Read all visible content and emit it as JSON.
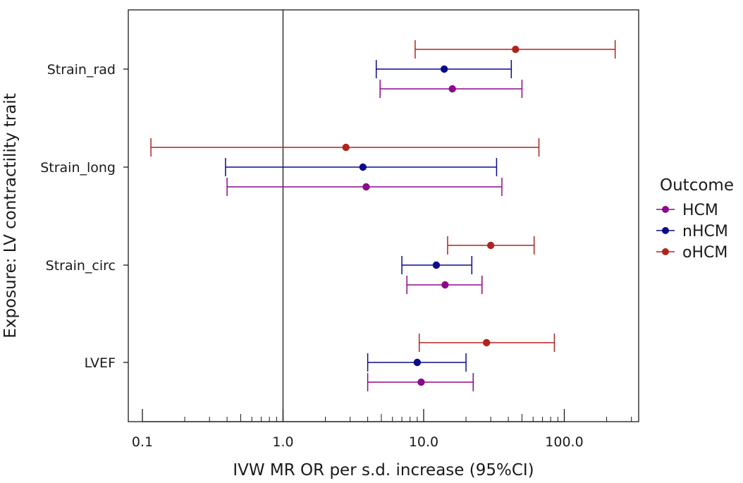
{
  "chart_data": {
    "type": "scatter",
    "subtype": "forest-plot",
    "xlabel": "IVW MR OR per s.d. increase (95%CI)",
    "ylabel": "Exposure: LV contractility trait",
    "x_scale": "log10",
    "xlim": [
      0.084,
      340
    ],
    "x_ticks": [
      0.1,
      1.0,
      10.0,
      100.0
    ],
    "x_tick_labels": [
      "0.1",
      "1.0",
      "10.0",
      "100.0"
    ],
    "reference_line": 1.0,
    "categories": [
      "Strain_rad",
      "Strain_long",
      "Strain_circ",
      "LVEF"
    ],
    "legend": {
      "title": "Outcome",
      "placement": "right"
    },
    "series": [
      {
        "name": "HCM",
        "color": "#8b0a8b",
        "points": [
          {
            "category": "Strain_rad",
            "or": 16.0,
            "lower": 4.9,
            "upper": 50
          },
          {
            "category": "Strain_long",
            "or": 3.9,
            "lower": 0.4,
            "upper": 36
          },
          {
            "category": "Strain_circ",
            "or": 14.2,
            "lower": 7.6,
            "upper": 26
          },
          {
            "category": "LVEF",
            "or": 9.6,
            "lower": 4.0,
            "upper": 22.5
          }
        ]
      },
      {
        "name": "nHCM",
        "color": "#0b0b8c",
        "points": [
          {
            "category": "Strain_rad",
            "or": 14.0,
            "lower": 4.6,
            "upper": 42
          },
          {
            "category": "Strain_long",
            "or": 3.7,
            "lower": 0.39,
            "upper": 33
          },
          {
            "category": "Strain_circ",
            "or": 12.3,
            "lower": 7.0,
            "upper": 22
          },
          {
            "category": "LVEF",
            "or": 9.0,
            "lower": 4.0,
            "upper": 20
          }
        ]
      },
      {
        "name": "oHCM",
        "color": "#b0241e",
        "points": [
          {
            "category": "Strain_rad",
            "or": 45.0,
            "lower": 8.7,
            "upper": 230
          },
          {
            "category": "Strain_long",
            "or": 2.8,
            "lower": 0.115,
            "upper": 66
          },
          {
            "category": "Strain_circ",
            "or": 30.0,
            "lower": 14.8,
            "upper": 61
          },
          {
            "category": "LVEF",
            "or": 28.0,
            "lower": 9.3,
            "upper": 85
          }
        ]
      }
    ]
  }
}
